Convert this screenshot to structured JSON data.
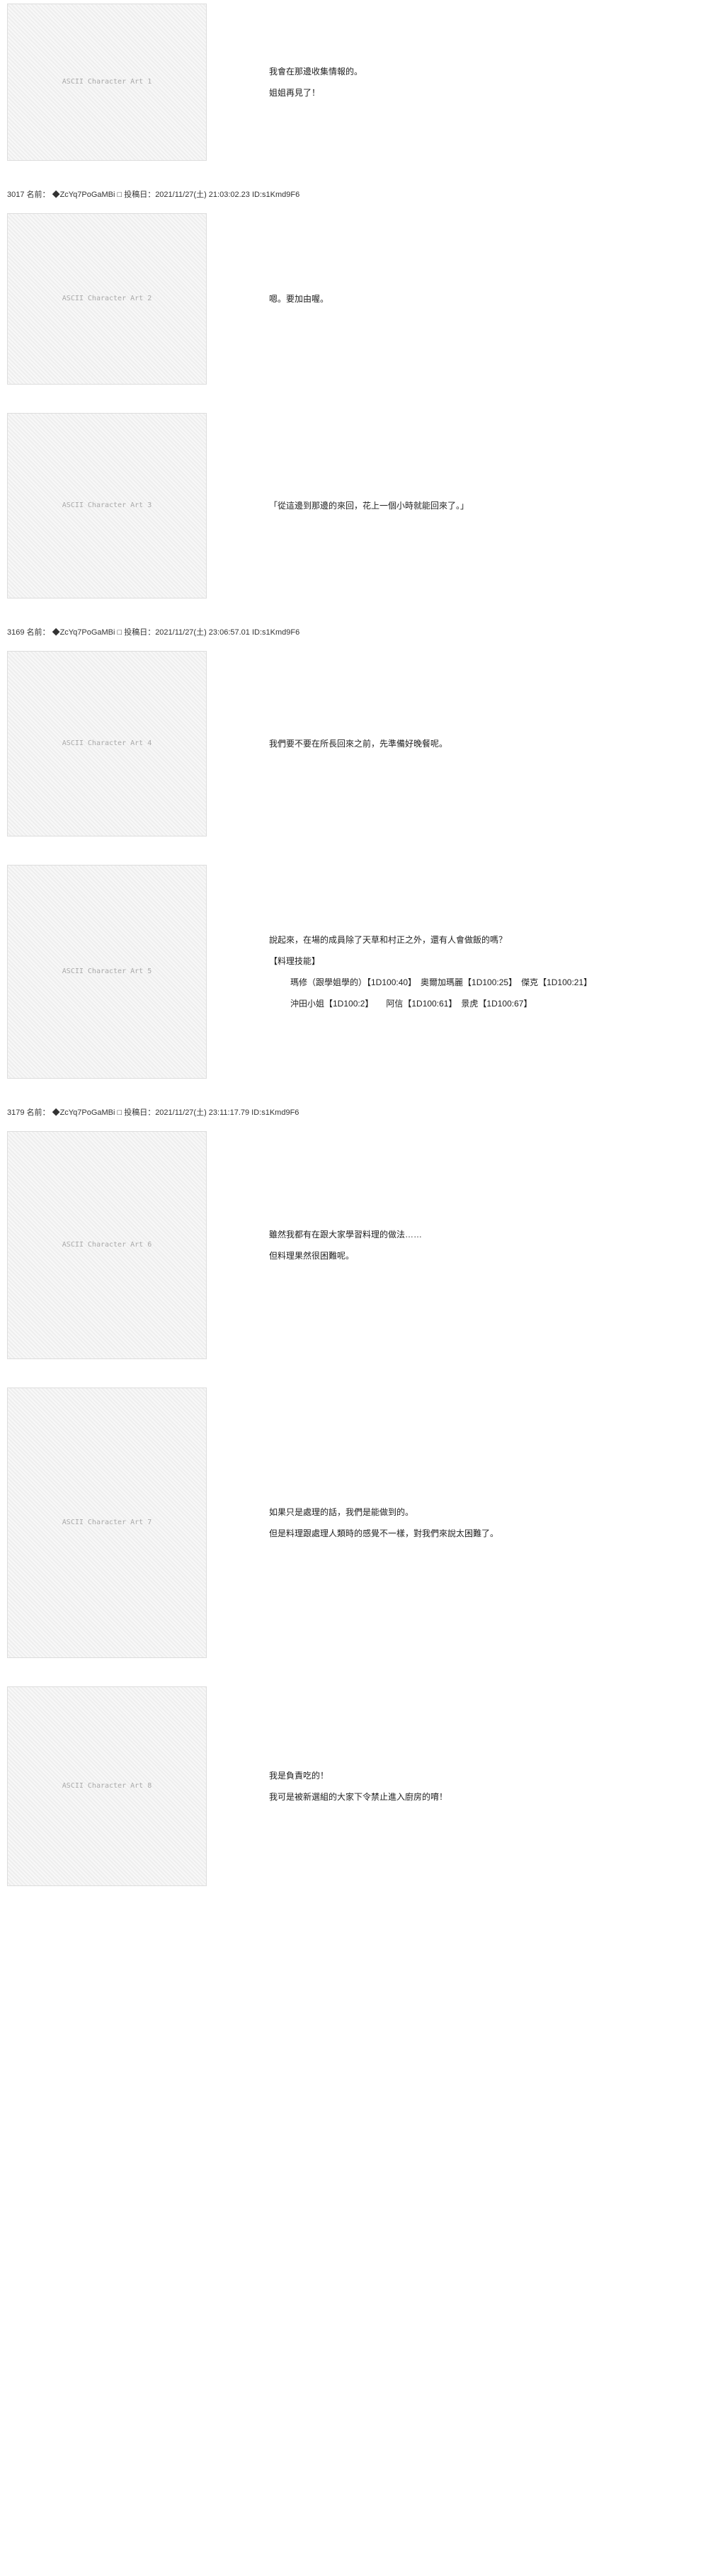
{
  "posts": [
    {
      "id": "p1",
      "header": null,
      "ascii_label": "ASCII Character Art 1",
      "ascii_height": 220,
      "lines": [
        "我會在那邊收集情報的。",
        "姐姐再見了！"
      ]
    },
    {
      "id": "p2",
      "header": "3017 名前： ◆ZcYq7PoGaMBi □ 投稿日：2021/11/27(土) 21:03:02.23 ID:s1Kmd9F6",
      "ascii_label": "ASCII Character Art 2",
      "ascii_height": 240,
      "lines": [
        "嗯。要加由喔。"
      ]
    },
    {
      "id": "p3",
      "header": null,
      "ascii_label": "ASCII Character Art 3",
      "ascii_height": 260,
      "lines": [
        "「從這邊到那邊的來回，花上一個小時就能回來了。」"
      ]
    },
    {
      "id": "p4",
      "header": "3169 名前： ◆ZcYq7PoGaMBi □ 投稿日：2021/11/27(土) 23:06:57.01 ID:s1Kmd9F6",
      "ascii_label": "ASCII Character Art 4",
      "ascii_height": 260,
      "lines": [
        "我們要不要在所長回來之前，先準備好晚餐呢。"
      ]
    },
    {
      "id": "p5",
      "header": null,
      "ascii_label": "ASCII Character Art 5",
      "ascii_height": 300,
      "lines": [
        "說起來，在場的成員除了天草和村正之外，還有人會做飯的嗎？",
        "【料理技能】",
        "瑪修（跟學姐學的）【1D100:40】　奧爾加瑪麗【1D100:25】　傑克【1D100:21】",
        "沖田小姐【1D100:2】　　阿信【1D100:61】　景虎【1D100:67】"
      ]
    },
    {
      "id": "p6",
      "header": "3179 名前： ◆ZcYq7PoGaMBi □ 投稿日：2021/11/27(土) 23:11:17.79 ID:s1Kmd9F6",
      "ascii_label": "ASCII Character Art 6",
      "ascii_height": 320,
      "lines": [
        "雖然我都有在跟大家學習料理的做法……",
        "但料理果然很困難呢。"
      ]
    },
    {
      "id": "p7",
      "header": null,
      "ascii_label": "ASCII Character Art 7",
      "ascii_height": 380,
      "lines": [
        "如果只是處理的話，我們是能做到的。",
        "但是料理跟處理人類時的感覺不一樣，對我們來說太困難了。"
      ]
    },
    {
      "id": "p8",
      "header": null,
      "ascii_label": "ASCII Character Art 8",
      "ascii_height": 280,
      "lines": [
        "我是負責吃的！",
        "我可是被新選組的大家下令禁止進入廚房的唷！"
      ]
    }
  ],
  "colors": {
    "background": "#ffffff",
    "text": "#222222",
    "header_text": "#333333",
    "ascii_color": "#888888"
  }
}
